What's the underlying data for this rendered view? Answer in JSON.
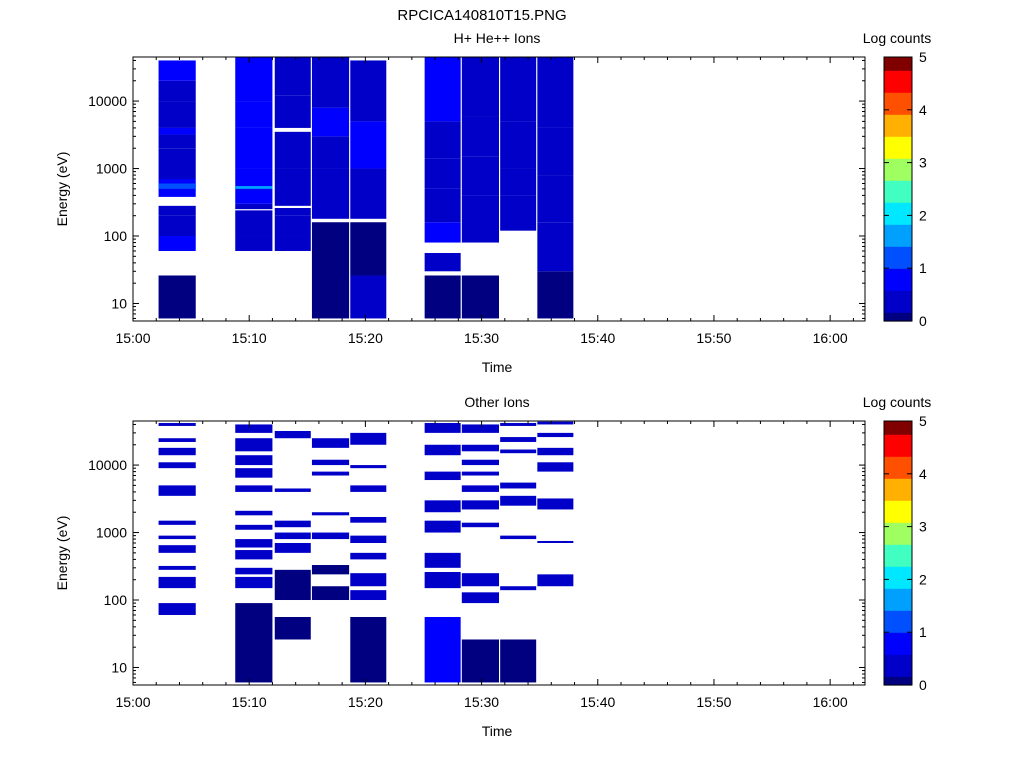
{
  "figure": {
    "title": "RPCICA140810T15.PNG"
  },
  "colors": {
    "scale": [
      "#000080",
      "#0000c8",
      "#0000ff",
      "#0050ff",
      "#00a0ff",
      "#00e8ff",
      "#40ffc0",
      "#a0ff60",
      "#ffff00",
      "#ffb000",
      "#ff5000",
      "#ff0000",
      "#800000"
    ]
  },
  "chart_data": [
    {
      "type": "heatmap",
      "title": "H+ He++ Ions",
      "xlabel": "Time",
      "ylabel": "Energy (eV)",
      "xlim": [
        "15:00",
        "16:03"
      ],
      "ylim": [
        5.5,
        45000
      ],
      "yscale": "log",
      "x_ticks": [
        "15:00",
        "15:10",
        "15:20",
        "15:30",
        "15:40",
        "15:50",
        "16:00"
      ],
      "y_ticks": [
        10,
        100,
        1000,
        10000
      ],
      "y_tick_labels": [
        "10",
        "100",
        "1000",
        "10000"
      ],
      "colorbar": {
        "label": "Log counts",
        "range": [
          0,
          5
        ],
        "ticks": [
          "0",
          "1",
          "2",
          "3",
          "4",
          "5"
        ]
      },
      "columns": [
        {
          "t_start": "15:02.2",
          "t_end": "15:05.4",
          "cells": [
            [
              6,
              26,
              0.1
            ],
            [
              60,
              100,
              0.8
            ],
            [
              100,
              200,
              0.6
            ],
            [
              200,
              280,
              0.3
            ],
            [
              380,
              700,
              0.8
            ],
            [
              500,
              600,
              1.3
            ],
            [
              700,
              2000,
              0.5
            ],
            [
              2000,
              3200,
              0.6
            ],
            [
              3200,
              4000,
              1.0
            ],
            [
              4000,
              10000,
              0.6
            ],
            [
              10000,
              20000,
              0.5
            ],
            [
              20000,
              40000,
              0.7
            ]
          ]
        },
        {
          "t_start": "15:08.8",
          "t_end": "15:12.0",
          "cells": [
            [
              60,
              100,
              0.3
            ],
            [
              100,
              240,
              0.5
            ],
            [
              250,
              300,
              0.4
            ],
            [
              300,
              1000,
              0.8
            ],
            [
              500,
              550,
              1.6
            ],
            [
              1000,
              4000,
              0.8
            ],
            [
              4000,
              10000,
              0.9
            ],
            [
              10000,
              45000,
              0.8
            ]
          ]
        },
        {
          "t_start": "15:12.2",
          "t_end": "15:15.3",
          "cells": [
            [
              60,
              100,
              0.5
            ],
            [
              100,
              200,
              0.6
            ],
            [
              200,
              260,
              0.4
            ],
            [
              280,
              1000,
              0.4
            ],
            [
              1000,
              3500,
              0.6
            ],
            [
              4000,
              12000,
              0.4
            ],
            [
              12000,
              45000,
              0.5
            ]
          ]
        },
        {
          "t_start": "15:15.4",
          "t_end": "15:18.6",
          "cells": [
            [
              6,
              160,
              0.1
            ],
            [
              180,
              1000,
              0.4
            ],
            [
              1000,
              3000,
              0.6
            ],
            [
              3000,
              8000,
              0.7
            ],
            [
              8000,
              45000,
              0.5
            ]
          ]
        },
        {
          "t_start": "15:18.7",
          "t_end": "15:21.8",
          "cells": [
            [
              6,
              26,
              0.5
            ],
            [
              26,
              160,
              0.2
            ],
            [
              180,
              1000,
              0.5
            ],
            [
              1000,
              5000,
              0.7
            ],
            [
              5000,
              40000,
              0.4
            ]
          ]
        },
        {
          "t_start": "15:25.1",
          "t_end": "15:28.2",
          "cells": [
            [
              6,
              26,
              0.1
            ],
            [
              30,
              56,
              0.3
            ],
            [
              80,
              160,
              0.8
            ],
            [
              160,
              500,
              0.6
            ],
            [
              500,
              1400,
              0.4
            ],
            [
              1400,
              5000,
              0.6
            ],
            [
              5000,
              45000,
              0.7
            ]
          ]
        },
        {
          "t_start": "15:28.3",
          "t_end": "15:31.5",
          "cells": [
            [
              6,
              26,
              0.1
            ],
            [
              80,
              400,
              0.6
            ],
            [
              400,
              1500,
              0.4
            ],
            [
              1500,
              6000,
              0.5
            ],
            [
              6000,
              45000,
              0.6
            ]
          ]
        },
        {
          "t_start": "15:31.6",
          "t_end": "15:34.7",
          "cells": [
            [
              120,
              400,
              0.6
            ],
            [
              400,
              1000,
              0.5
            ],
            [
              1000,
              5000,
              0.6
            ],
            [
              5000,
              45000,
              0.6
            ]
          ]
        },
        {
          "t_start": "15:34.8",
          "t_end": "15:37.9",
          "cells": [
            [
              6,
              30,
              0.1
            ],
            [
              30,
              160,
              0.5
            ],
            [
              160,
              800,
              0.3
            ],
            [
              800,
              4000,
              0.5
            ],
            [
              4000,
              45000,
              0.6
            ]
          ]
        }
      ]
    },
    {
      "type": "heatmap",
      "title": "Other Ions",
      "xlabel": "Time",
      "ylabel": "Energy (eV)",
      "xlim": [
        "15:00",
        "16:03"
      ],
      "ylim": [
        5.5,
        45000
      ],
      "yscale": "log",
      "x_ticks": [
        "15:00",
        "15:10",
        "15:20",
        "15:30",
        "15:40",
        "15:50",
        "16:00"
      ],
      "y_ticks": [
        10,
        100,
        1000,
        10000
      ],
      "y_tick_labels": [
        "10",
        "100",
        "1000",
        "10000"
      ],
      "colorbar": {
        "label": "Log counts",
        "range": [
          0,
          5
        ],
        "ticks": [
          "0",
          "1",
          "2",
          "3",
          "4",
          "5"
        ]
      },
      "columns": [
        {
          "t_start": "15:02.2",
          "t_end": "15:05.4",
          "cells": [
            [
              60,
              90,
              0.5
            ],
            [
              150,
              220,
              0.3
            ],
            [
              280,
              320,
              0.3
            ],
            [
              500,
              650,
              0.3
            ],
            [
              800,
              900,
              0.3
            ],
            [
              1300,
              1500,
              0.5
            ],
            [
              3500,
              5000,
              0.3
            ],
            [
              9000,
              11000,
              0.3
            ],
            [
              14000,
              18000,
              0.3
            ],
            [
              22000,
              25000,
              0.3
            ],
            [
              38000,
              42000,
              0.3
            ]
          ]
        },
        {
          "t_start": "15:08.8",
          "t_end": "15:12.0",
          "cells": [
            [
              6,
              90,
              0.1
            ],
            [
              150,
              220,
              0.5
            ],
            [
              240,
              300,
              0.3
            ],
            [
              400,
              550,
              0.3
            ],
            [
              600,
              800,
              0.3
            ],
            [
              1100,
              1300,
              0.3
            ],
            [
              1800,
              2100,
              0.3
            ],
            [
              4000,
              5000,
              0.3
            ],
            [
              6500,
              9000,
              0.3
            ],
            [
              10000,
              14000,
              0.3
            ],
            [
              16000,
              25000,
              0.3
            ],
            [
              30000,
              40000,
              0.3
            ]
          ]
        },
        {
          "t_start": "15:12.2",
          "t_end": "15:15.3",
          "cells": [
            [
              26,
              56,
              0.1
            ],
            [
              100,
              280,
              0.2
            ],
            [
              500,
              700,
              0.3
            ],
            [
              800,
              1000,
              0.3
            ],
            [
              1200,
              1500,
              0.3
            ],
            [
              4000,
              4500,
              0.3
            ],
            [
              25000,
              32000,
              0.3
            ]
          ]
        },
        {
          "t_start": "15:15.4",
          "t_end": "15:18.6",
          "cells": [
            [
              100,
              160,
              0.1
            ],
            [
              240,
              330,
              0.2
            ],
            [
              800,
              1000,
              0.3
            ],
            [
              1800,
              2000,
              0.3
            ],
            [
              7000,
              8000,
              0.3
            ],
            [
              10000,
              12000,
              0.3
            ],
            [
              18000,
              25000,
              0.3
            ]
          ]
        },
        {
          "t_start": "15:18.7",
          "t_end": "15:21.8",
          "cells": [
            [
              6,
              56,
              0.1
            ],
            [
              100,
              140,
              0.5
            ],
            [
              160,
              250,
              0.3
            ],
            [
              400,
              500,
              0.3
            ],
            [
              700,
              900,
              0.3
            ],
            [
              1400,
              1700,
              0.3
            ],
            [
              4000,
              5000,
              0.3
            ],
            [
              9000,
              10000,
              0.3
            ],
            [
              20000,
              30000,
              0.3
            ]
          ]
        },
        {
          "t_start": "15:25.1",
          "t_end": "15:28.2",
          "cells": [
            [
              6,
              56,
              0.7
            ],
            [
              150,
              260,
              0.4
            ],
            [
              300,
              500,
              0.3
            ],
            [
              1000,
              1500,
              0.3
            ],
            [
              2000,
              3000,
              0.3
            ],
            [
              6000,
              8000,
              0.3
            ],
            [
              14000,
              20000,
              0.3
            ],
            [
              30000,
              42000,
              0.3
            ]
          ]
        },
        {
          "t_start": "15:28.3",
          "t_end": "15:31.5",
          "cells": [
            [
              6,
              26,
              0.1
            ],
            [
              90,
              130,
              0.4
            ],
            [
              160,
              250,
              0.3
            ],
            [
              1200,
              1400,
              0.3
            ],
            [
              2200,
              3000,
              0.3
            ],
            [
              4000,
              5000,
              0.3
            ],
            [
              7000,
              8000,
              0.3
            ],
            [
              10000,
              12000,
              0.3
            ],
            [
              16000,
              20000,
              0.3
            ],
            [
              30000,
              40000,
              0.3
            ]
          ]
        },
        {
          "t_start": "15:31.6",
          "t_end": "15:34.7",
          "cells": [
            [
              6,
              26,
              0.1
            ],
            [
              140,
              160,
              0.3
            ],
            [
              800,
              900,
              0.3
            ],
            [
              2500,
              3500,
              0.3
            ],
            [
              4500,
              5500,
              0.3
            ],
            [
              15000,
              17000,
              0.3
            ],
            [
              22000,
              26000,
              0.3
            ],
            [
              38000,
              42000,
              0.3
            ]
          ]
        },
        {
          "t_start": "15:34.8",
          "t_end": "15:37.9",
          "cells": [
            [
              160,
              240,
              0.4
            ],
            [
              700,
              750,
              0.3
            ],
            [
              2200,
              3200,
              0.3
            ],
            [
              8000,
              11000,
              0.3
            ],
            [
              14000,
              18000,
              0.3
            ],
            [
              26000,
              30000,
              0.3
            ],
            [
              40000,
              44000,
              0.3
            ]
          ]
        }
      ]
    }
  ]
}
